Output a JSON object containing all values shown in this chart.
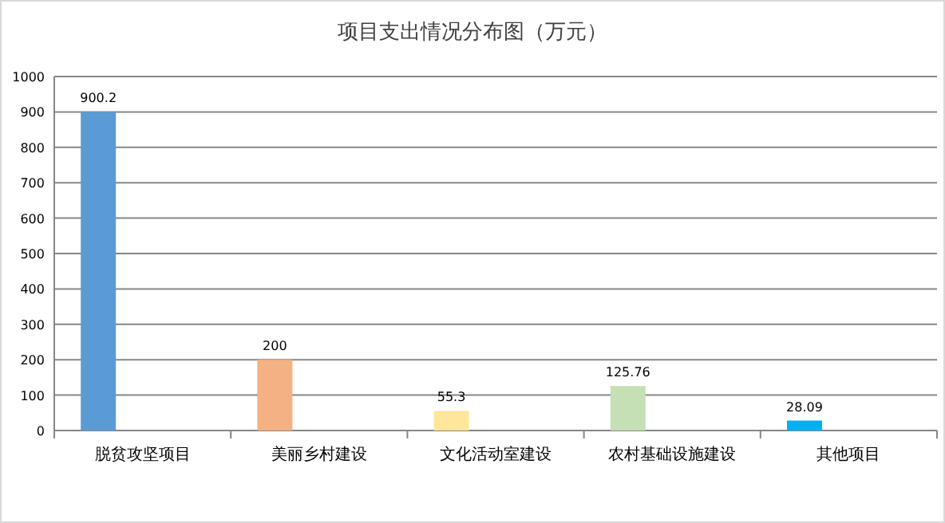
{
  "chart_data": {
    "type": "bar",
    "title": "项目支出情况分布图（万元）",
    "categories": [
      "脱贫攻坚项目",
      "美丽乡村建设",
      "文化活动室建设",
      "农村基础设施建设",
      "其他项目"
    ],
    "values": [
      900.2,
      200,
      55.3,
      125.76,
      28.09
    ],
    "colors": [
      "#5b9bd5",
      "#f4b183",
      "#ffe699",
      "#c5e0b4",
      "#00b0f0"
    ],
    "ylim": [
      0,
      1000
    ],
    "yticks": [
      0,
      100,
      200,
      300,
      400,
      500,
      600,
      700,
      800,
      900,
      1000
    ],
    "grid": "y",
    "data_labels": true
  }
}
